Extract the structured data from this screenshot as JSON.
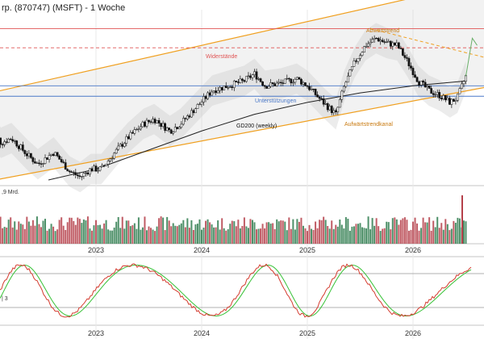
{
  "title": "rp. (870747) (MSFT) - 1 Woche",
  "colors": {
    "up": "#2f7d4f",
    "down": "#b5404a",
    "resistance": "#e05555",
    "support": "#4a78c8",
    "trend": "#f0a020",
    "gd200": "#222222",
    "stoch_k": "#d43b2f",
    "stoch_d": "#36c236",
    "band": "#c9c9c9"
  },
  "labels": {
    "abwaertstrend": "Abwärtstrend",
    "widerstaende": "Widerstände",
    "unterstuetzungen": "Unterstützungen",
    "gd200": "GD200 (weekly)",
    "aufwaertstrendkanal": "Aufwärtstrendkanal",
    "volume_scale": ",9 Mrd.",
    "stoch_scale": "| 3"
  },
  "chart_data": {
    "type": "candlestick",
    "x_ticks": [
      "2023",
      "2024",
      "2025",
      "2026"
    ],
    "y_range": [
      205,
      580
    ],
    "price": [
      {
        "t": 2022.0,
        "v": 335
      },
      {
        "t": 2022.1,
        "v": 300
      },
      {
        "t": 2022.2,
        "v": 310
      },
      {
        "t": 2022.35,
        "v": 275
      },
      {
        "t": 2022.45,
        "v": 255
      },
      {
        "t": 2022.6,
        "v": 280
      },
      {
        "t": 2022.75,
        "v": 240
      },
      {
        "t": 2022.85,
        "v": 228
      },
      {
        "t": 2022.95,
        "v": 245
      },
      {
        "t": 2023.05,
        "v": 245
      },
      {
        "t": 2023.2,
        "v": 285
      },
      {
        "t": 2023.3,
        "v": 310
      },
      {
        "t": 2023.45,
        "v": 340
      },
      {
        "t": 2023.55,
        "v": 350
      },
      {
        "t": 2023.7,
        "v": 325
      },
      {
        "t": 2023.8,
        "v": 340
      },
      {
        "t": 2023.95,
        "v": 375
      },
      {
        "t": 2024.1,
        "v": 410
      },
      {
        "t": 2024.25,
        "v": 420
      },
      {
        "t": 2024.4,
        "v": 430
      },
      {
        "t": 2024.5,
        "v": 445
      },
      {
        "t": 2024.6,
        "v": 420
      },
      {
        "t": 2024.75,
        "v": 425
      },
      {
        "t": 2024.9,
        "v": 435
      },
      {
        "t": 2025.0,
        "v": 420
      },
      {
        "t": 2025.15,
        "v": 385
      },
      {
        "t": 2025.27,
        "v": 360
      },
      {
        "t": 2025.35,
        "v": 420
      },
      {
        "t": 2025.45,
        "v": 470
      },
      {
        "t": 2025.55,
        "v": 505
      },
      {
        "t": 2025.65,
        "v": 520
      },
      {
        "t": 2025.75,
        "v": 510
      },
      {
        "t": 2025.85,
        "v": 505
      },
      {
        "t": 2025.95,
        "v": 470
      },
      {
        "t": 2026.05,
        "v": 430
      },
      {
        "t": 2026.15,
        "v": 410
      },
      {
        "t": 2026.25,
        "v": 400
      },
      {
        "t": 2026.35,
        "v": 385
      },
      {
        "t": 2026.42,
        "v": 395
      },
      {
        "t": 2026.5,
        "v": 440
      }
    ],
    "gd200": [
      {
        "t": 2022.55,
        "v": 222
      },
      {
        "t": 2023.0,
        "v": 245
      },
      {
        "t": 2023.5,
        "v": 285
      },
      {
        "t": 2024.0,
        "v": 325
      },
      {
        "t": 2024.5,
        "v": 360
      },
      {
        "t": 2025.0,
        "v": 385
      },
      {
        "t": 2025.5,
        "v": 405
      },
      {
        "t": 2026.0,
        "v": 420
      },
      {
        "t": 2026.5,
        "v": 430
      }
    ],
    "resistance_levels": [
      540,
      500
    ],
    "support_levels": [
      420,
      398
    ],
    "stochastic_levels": [
      80,
      20
    ]
  }
}
